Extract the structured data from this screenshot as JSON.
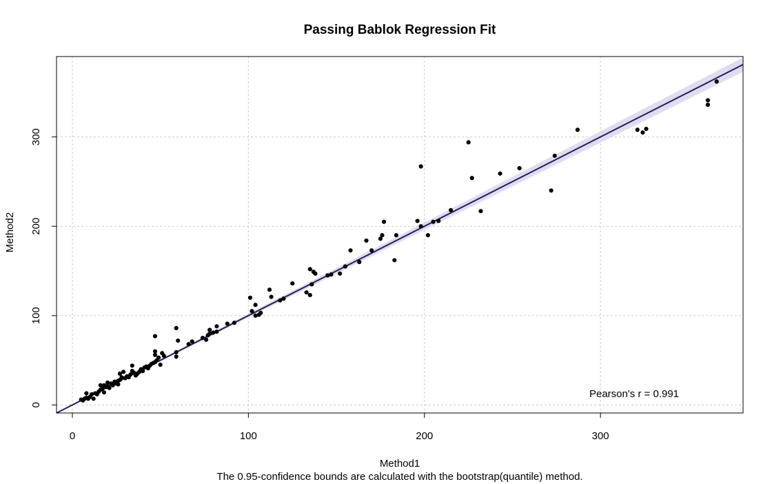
{
  "chart_data": {
    "type": "scatter",
    "title": "Passing Bablok Regression Fit",
    "xlabel": "Method1",
    "ylabel": "Method2",
    "footnote": "The 0.95-confidence bounds are calculated with the bootstrap(quantile) method.",
    "annotation": "Pearson's r = 0.991",
    "xlim": [
      -9,
      381
    ],
    "ylim": [
      -9,
      390
    ],
    "xticks": [
      0,
      100,
      200,
      300
    ],
    "yticks": [
      0,
      100,
      200,
      300
    ],
    "grid": true,
    "fit": {
      "intercept": 0,
      "slope": 1.0,
      "ci_low_end": 373,
      "ci_high_end": 389,
      "band_color": "#ddd8ee",
      "line_color": "#20205a",
      "identity_color": "#d05050"
    },
    "points": [
      [
        5,
        6
      ],
      [
        6,
        5
      ],
      [
        7,
        7
      ],
      [
        8,
        8
      ],
      [
        9,
        7
      ],
      [
        8,
        13
      ],
      [
        10,
        9
      ],
      [
        11,
        12
      ],
      [
        12,
        7
      ],
      [
        13,
        13
      ],
      [
        14,
        12
      ],
      [
        15,
        15
      ],
      [
        16,
        17
      ],
      [
        16,
        22
      ],
      [
        17,
        18
      ],
      [
        18,
        14
      ],
      [
        18,
        22
      ],
      [
        19,
        20
      ],
      [
        20,
        21
      ],
      [
        20,
        25
      ],
      [
        21,
        19
      ],
      [
        22,
        24
      ],
      [
        23,
        22
      ],
      [
        24,
        26
      ],
      [
        25,
        24
      ],
      [
        26,
        27
      ],
      [
        27,
        28
      ],
      [
        26,
        23
      ],
      [
        27,
        35
      ],
      [
        28,
        31
      ],
      [
        29,
        37
      ],
      [
        30,
        30
      ],
      [
        31,
        32
      ],
      [
        32,
        31
      ],
      [
        33,
        34
      ],
      [
        34,
        38
      ],
      [
        34,
        44
      ],
      [
        35,
        36
      ],
      [
        36,
        33
      ],
      [
        37,
        35
      ],
      [
        38,
        37
      ],
      [
        39,
        40
      ],
      [
        40,
        38
      ],
      [
        41,
        42
      ],
      [
        42,
        43
      ],
      [
        43,
        41
      ],
      [
        44,
        44
      ],
      [
        45,
        46
      ],
      [
        46,
        47
      ],
      [
        47,
        48
      ],
      [
        47,
        56
      ],
      [
        47,
        77
      ],
      [
        48,
        50
      ],
      [
        49,
        53
      ],
      [
        50,
        45
      ],
      [
        51,
        58
      ],
      [
        52,
        55
      ],
      [
        47,
        60
      ],
      [
        59,
        59
      ],
      [
        59,
        54
      ],
      [
        60,
        72
      ],
      [
        59,
        86
      ],
      [
        66,
        68
      ],
      [
        68,
        71
      ],
      [
        74,
        75
      ],
      [
        76,
        73
      ],
      [
        77,
        78
      ],
      [
        78,
        80
      ],
      [
        78,
        84
      ],
      [
        80,
        81
      ],
      [
        82,
        82
      ],
      [
        82,
        88
      ],
      [
        88,
        91
      ],
      [
        92,
        92
      ],
      [
        101,
        120
      ],
      [
        102,
        105
      ],
      [
        104,
        100
      ],
      [
        104,
        112
      ],
      [
        106,
        101
      ],
      [
        107,
        103
      ],
      [
        112,
        129
      ],
      [
        113,
        121
      ],
      [
        118,
        117
      ],
      [
        120,
        119
      ],
      [
        125,
        136
      ],
      [
        133,
        126
      ],
      [
        135,
        152
      ],
      [
        135,
        123
      ],
      [
        136,
        135
      ],
      [
        137,
        149
      ],
      [
        138,
        147
      ],
      [
        145,
        145
      ],
      [
        147,
        146
      ],
      [
        152,
        147
      ],
      [
        155,
        155
      ],
      [
        158,
        173
      ],
      [
        163,
        160
      ],
      [
        167,
        184
      ],
      [
        170,
        173
      ],
      [
        175,
        186
      ],
      [
        176,
        190
      ],
      [
        177,
        205
      ],
      [
        183,
        162
      ],
      [
        184,
        190
      ],
      [
        196,
        206
      ],
      [
        198,
        200
      ],
      [
        198,
        267
      ],
      [
        202,
        190
      ],
      [
        205,
        205
      ],
      [
        208,
        206
      ],
      [
        215,
        218
      ],
      [
        225,
        294
      ],
      [
        227,
        254
      ],
      [
        232,
        217
      ],
      [
        243,
        259
      ],
      [
        254,
        265
      ],
      [
        272,
        240
      ],
      [
        274,
        279
      ],
      [
        287,
        308
      ],
      [
        321,
        308
      ],
      [
        324,
        305
      ],
      [
        326,
        309
      ],
      [
        361,
        341
      ],
      [
        361,
        336
      ],
      [
        366,
        362
      ]
    ]
  }
}
